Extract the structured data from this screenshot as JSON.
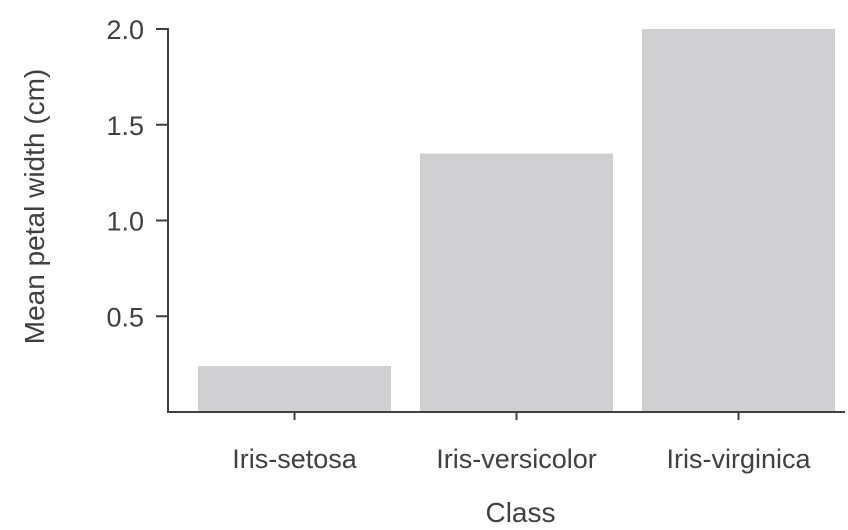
{
  "chart_data": {
    "type": "bar",
    "xlabel": "Class",
    "ylabel": "Mean petal width (cm)",
    "categories": [
      "Iris-setosa",
      "Iris-versicolor",
      "Iris-virginica"
    ],
    "values": [
      0.24,
      1.35,
      2.0
    ],
    "ylim": [
      0,
      2.0
    ],
    "yticks": [
      "0.5",
      "1.0",
      "1.5",
      "2.0"
    ],
    "ytick_values": [
      0.5,
      1.0,
      1.5,
      2.0
    ],
    "bar_color": "#d0d0d2",
    "axis_color": "#404040",
    "grid": false
  }
}
